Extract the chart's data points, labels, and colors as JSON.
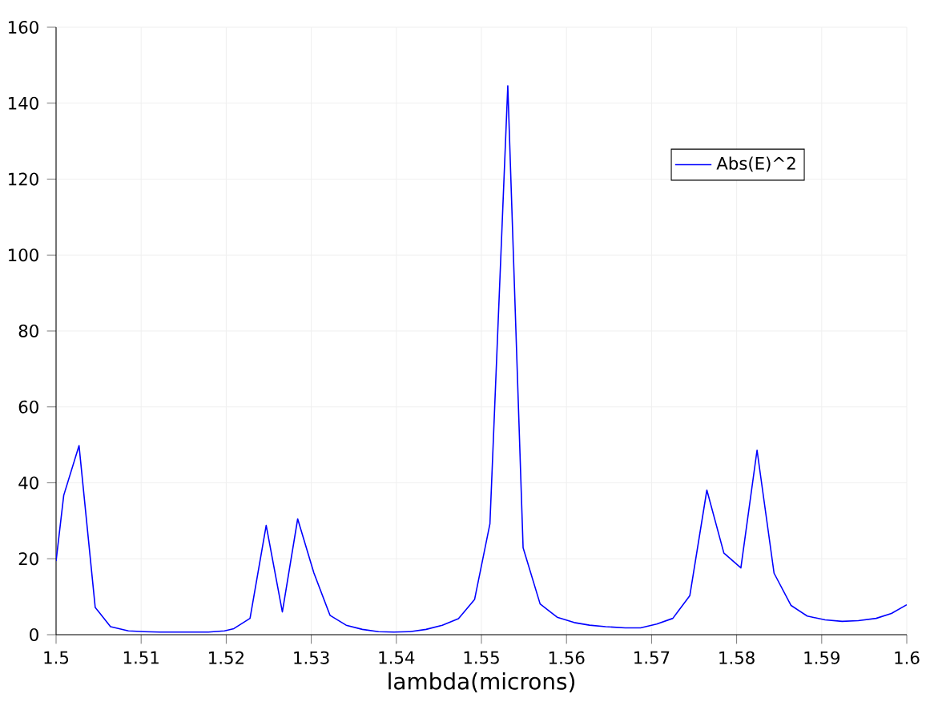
{
  "chart_data": {
    "type": "line",
    "xlabel": "lambda(microns)",
    "x": [
      1.5,
      1.5009,
      1.5027,
      1.5046,
      1.5064,
      1.5085,
      1.5104,
      1.5122,
      1.5141,
      1.516,
      1.5179,
      1.5198,
      1.5209,
      1.5228,
      1.5247,
      1.5266,
      1.5284,
      1.5303,
      1.5322,
      1.5341,
      1.536,
      1.5379,
      1.5397,
      1.5416,
      1.5435,
      1.5454,
      1.5473,
      1.5492,
      1.551,
      1.5531,
      1.5549,
      1.5569,
      1.5589,
      1.5609,
      1.5627,
      1.5646,
      1.5669,
      1.5687,
      1.5706,
      1.5725,
      1.5745,
      1.5765,
      1.5785,
      1.5805,
      1.5824,
      1.5844,
      1.5864,
      1.5883,
      1.5904,
      1.5924,
      1.5943,
      1.5964,
      1.5982,
      1.6
    ],
    "series": [
      {
        "name": "Abs(E)^2",
        "color": "#0000ff",
        "values": [
          19.4,
          36.7,
          49.8,
          7.2,
          2.1,
          1.0,
          0.8,
          0.7,
          0.7,
          0.7,
          0.7,
          1.0,
          1.6,
          4.3,
          28.8,
          6.0,
          30.5,
          16.3,
          5.1,
          2.5,
          1.4,
          0.8,
          0.7,
          0.8,
          1.4,
          2.5,
          4.2,
          9.3,
          29.2,
          144.6,
          22.9,
          8.1,
          4.6,
          3.2,
          2.5,
          2.1,
          1.8,
          1.8,
          2.8,
          4.3,
          10.3,
          38.1,
          21.5,
          17.6,
          48.6,
          16.2,
          7.7,
          4.9,
          3.9,
          3.5,
          3.7,
          4.3,
          5.6,
          7.9
        ]
      }
    ],
    "xlim": [
      1.5,
      1.6
    ],
    "ylim": [
      0,
      160
    ],
    "xticks": [
      1.5,
      1.51,
      1.52,
      1.53,
      1.54,
      1.55,
      1.56,
      1.57,
      1.58,
      1.59,
      1.6
    ],
    "yticks": [
      0,
      20,
      40,
      60,
      80,
      100,
      120,
      140,
      160
    ],
    "grid": true,
    "legend": "top right",
    "marker": "none",
    "line_style": "solid"
  }
}
